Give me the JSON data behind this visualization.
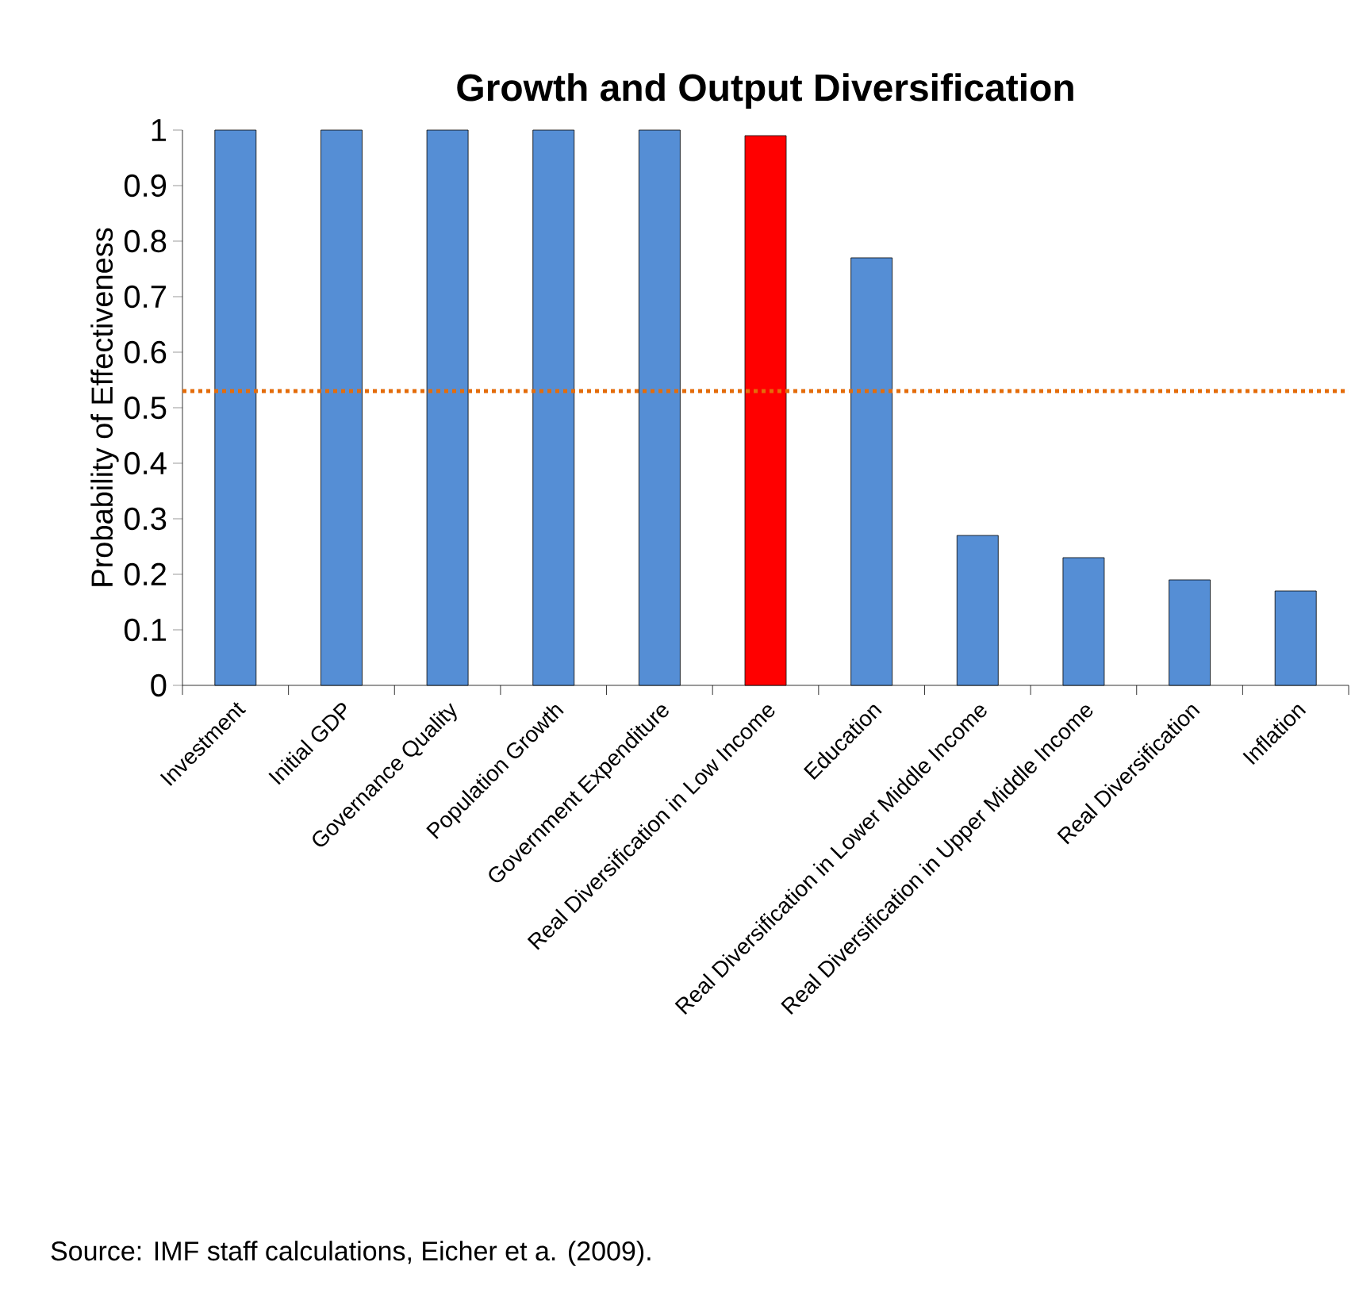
{
  "chart_data": {
    "type": "bar",
    "title": "Growth and Output Diversification",
    "ylabel": "Probability of Effectiveness",
    "categories": [
      "Investment",
      "Initial GDP",
      "Governance Quality",
      "Population Growth",
      "Government Expenditure",
      "Real Diversification in Low Income",
      "Education",
      "Real Diversification in Lower Middle Income",
      "Real Diversification in Upper Middle Income",
      "Real Diversification",
      "Inflation"
    ],
    "values": [
      1,
      1,
      1,
      1,
      1,
      0.99,
      0.77,
      0.27,
      0.23,
      0.19,
      0.17
    ],
    "colors": [
      "#558ed5",
      "#558ed5",
      "#558ed5",
      "#558ed5",
      "#558ed5",
      "#ff0000",
      "#558ed5",
      "#558ed5",
      "#558ed5",
      "#558ed5",
      "#558ed5"
    ],
    "ylim": [
      0,
      1
    ],
    "yticks": [
      0,
      0.1,
      0.2,
      0.3,
      0.4,
      0.5,
      0.6,
      0.7,
      0.8,
      0.9,
      1
    ],
    "ref_lines": [
      {
        "axis": "y",
        "value": 0.53,
        "color": "#e46c0a",
        "line_style": "dotted"
      }
    ],
    "annotations": [
      "Source: IMF staff calculations, Eicher et a. (2009)."
    ]
  }
}
